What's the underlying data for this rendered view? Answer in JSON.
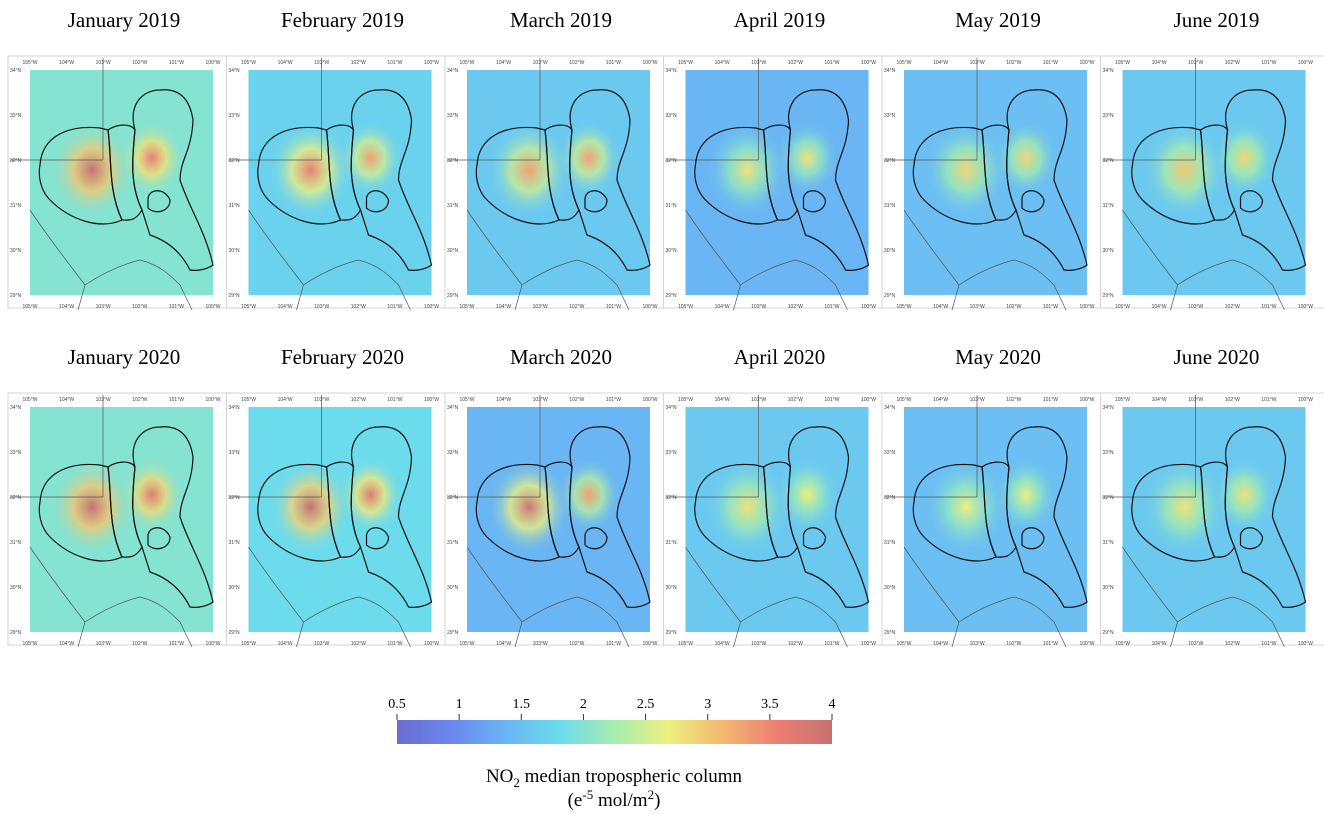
{
  "figure": {
    "lon_labels": [
      "105°W",
      "104°W",
      "103°W",
      "102°W",
      "101°W",
      "100°W"
    ],
    "lat_labels": [
      "34°N",
      "33°N",
      "32°N",
      "31°N",
      "30°N",
      "29°N"
    ],
    "panels": [
      {
        "title": "January 2019",
        "background": 2.0,
        "west_peak": 4,
        "east_peak": 3.6
      },
      {
        "title": "February 2019",
        "background": 1.7,
        "west_peak": 3.6,
        "east_peak": 3.3
      },
      {
        "title": "March 2019",
        "background": 1.6,
        "west_peak": 3.3,
        "east_peak": 3.3
      },
      {
        "title": "April 2019",
        "background": 1.4,
        "west_peak": 2.8,
        "east_peak": 2.8
      },
      {
        "title": "May 2019",
        "background": 1.5,
        "west_peak": 2.9,
        "east_peak": 2.9
      },
      {
        "title": "June 2019",
        "background": 1.6,
        "west_peak": 3.0,
        "east_peak": 2.9
      },
      {
        "title": "January 2020",
        "background": 2.0,
        "west_peak": 4,
        "east_peak": 3.7
      },
      {
        "title": "February 2020",
        "background": 1.8,
        "west_peak": 4,
        "east_peak": 3.7
      },
      {
        "title": "March 2020",
        "background": 1.4,
        "west_peak": 3.9,
        "east_peak": 3.3
      },
      {
        "title": "April 2020",
        "background": 1.6,
        "west_peak": 2.8,
        "east_peak": 2.7
      },
      {
        "title": "May 2020",
        "background": 1.5,
        "west_peak": 2.7,
        "east_peak": 2.7
      },
      {
        "title": "June 2020",
        "background": 1.6,
        "west_peak": 2.8,
        "east_peak": 2.8
      }
    ],
    "colorbar": {
      "lim": [
        0.5,
        4
      ],
      "ticks": [
        0.5,
        1,
        1.5,
        2,
        2.5,
        3,
        3.5,
        4
      ],
      "colorscale": [
        "#6a6ed0",
        "#6b86ef",
        "#6ab4f4",
        "#6cdcec",
        "#a6ecae",
        "#eef07e",
        "#f2b870",
        "#ec7e72",
        "#c47272"
      ],
      "label_line1": [
        "NO",
        "2",
        " median tropospheric column"
      ],
      "label_line2": [
        "(e",
        "-5",
        " mol/m",
        "2",
        ")"
      ]
    }
  }
}
